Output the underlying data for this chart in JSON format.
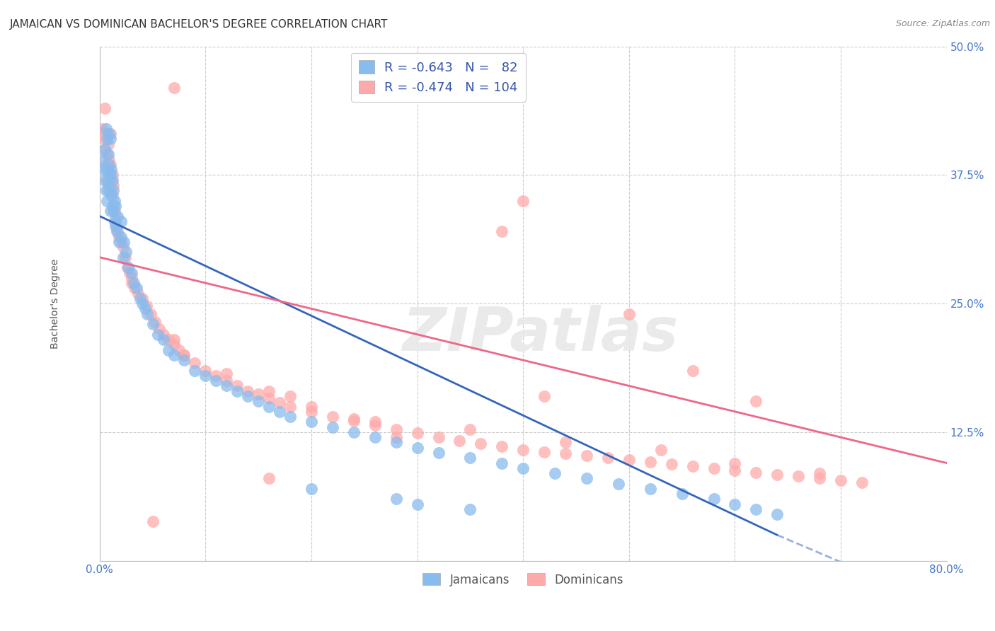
{
  "title": "JAMAICAN VS DOMINICAN BACHELOR'S DEGREE CORRELATION CHART",
  "source": "Source: ZipAtlas.com",
  "ylabel": "Bachelor's Degree",
  "xlim": [
    0.0,
    0.8
  ],
  "ylim": [
    0.0,
    0.5
  ],
  "xticks": [
    0.0,
    0.1,
    0.2,
    0.3,
    0.4,
    0.5,
    0.6,
    0.7,
    0.8
  ],
  "xticklabels_show": {
    "0.0": "0.0%",
    "0.80": "80.0%"
  },
  "yticks": [
    0.0,
    0.125,
    0.25,
    0.375,
    0.5
  ],
  "yticklabels": [
    "",
    "12.5%",
    "25.0%",
    "37.5%",
    "50.0%"
  ],
  "blue_color": "#88BBEE",
  "pink_color": "#FFAAAA",
  "blue_line_color": "#3366BB",
  "pink_line_color": "#EE6688",
  "legend_label_blue": "R = -0.643   N =   82",
  "legend_label_pink": "R = -0.474   N = 104",
  "bottom_legend_blue": "Jamaicans",
  "bottom_legend_pink": "Dominicans",
  "title_fontsize": 11,
  "axis_label_fontsize": 10,
  "tick_fontsize": 11,
  "legend_fontsize": 13,
  "watermark_text": "ZIPatlas",
  "grid_color": "#CCCCCC",
  "background_color": "#FFFFFF",
  "blue_line_x0": 0.0,
  "blue_line_y0": 0.335,
  "blue_line_x1": 0.64,
  "blue_line_y1": 0.025,
  "blue_line_dash_x0": 0.64,
  "blue_line_dash_y0": 0.025,
  "blue_line_dash_x1": 0.72,
  "blue_line_dash_y1": -0.01,
  "pink_line_x0": 0.0,
  "pink_line_y0": 0.295,
  "pink_line_x1": 0.8,
  "pink_line_y1": 0.095,
  "blue_points_x": [
    0.003,
    0.004,
    0.005,
    0.005,
    0.006,
    0.006,
    0.007,
    0.007,
    0.007,
    0.008,
    0.008,
    0.008,
    0.009,
    0.009,
    0.01,
    0.01,
    0.01,
    0.011,
    0.011,
    0.012,
    0.012,
    0.013,
    0.013,
    0.014,
    0.014,
    0.015,
    0.015,
    0.016,
    0.017,
    0.018,
    0.02,
    0.02,
    0.022,
    0.023,
    0.025,
    0.027,
    0.03,
    0.032,
    0.035,
    0.038,
    0.04,
    0.043,
    0.045,
    0.05,
    0.055,
    0.06,
    0.065,
    0.07,
    0.08,
    0.09,
    0.1,
    0.11,
    0.12,
    0.13,
    0.14,
    0.15,
    0.16,
    0.17,
    0.18,
    0.2,
    0.22,
    0.24,
    0.26,
    0.28,
    0.3,
    0.32,
    0.35,
    0.38,
    0.4,
    0.43,
    0.46,
    0.49,
    0.52,
    0.55,
    0.58,
    0.6,
    0.62,
    0.64,
    0.2,
    0.28,
    0.3,
    0.35
  ],
  "blue_points_y": [
    0.39,
    0.38,
    0.37,
    0.4,
    0.36,
    0.42,
    0.35,
    0.38,
    0.41,
    0.37,
    0.395,
    0.36,
    0.385,
    0.415,
    0.375,
    0.34,
    0.41,
    0.355,
    0.38,
    0.345,
    0.37,
    0.34,
    0.36,
    0.33,
    0.35,
    0.325,
    0.345,
    0.32,
    0.335,
    0.31,
    0.315,
    0.33,
    0.295,
    0.31,
    0.3,
    0.285,
    0.28,
    0.27,
    0.265,
    0.255,
    0.25,
    0.245,
    0.24,
    0.23,
    0.22,
    0.215,
    0.205,
    0.2,
    0.195,
    0.185,
    0.18,
    0.175,
    0.17,
    0.165,
    0.16,
    0.155,
    0.15,
    0.145,
    0.14,
    0.135,
    0.13,
    0.125,
    0.12,
    0.115,
    0.11,
    0.105,
    0.1,
    0.095,
    0.09,
    0.085,
    0.08,
    0.075,
    0.07,
    0.065,
    0.06,
    0.055,
    0.05,
    0.045,
    0.07,
    0.06,
    0.055,
    0.05
  ],
  "pink_points_x": [
    0.003,
    0.004,
    0.005,
    0.005,
    0.006,
    0.006,
    0.007,
    0.007,
    0.008,
    0.008,
    0.009,
    0.009,
    0.01,
    0.01,
    0.01,
    0.011,
    0.012,
    0.012,
    0.013,
    0.013,
    0.014,
    0.015,
    0.016,
    0.017,
    0.018,
    0.02,
    0.022,
    0.024,
    0.026,
    0.028,
    0.03,
    0.033,
    0.036,
    0.04,
    0.044,
    0.048,
    0.052,
    0.056,
    0.06,
    0.065,
    0.07,
    0.075,
    0.08,
    0.09,
    0.1,
    0.11,
    0.12,
    0.13,
    0.14,
    0.15,
    0.16,
    0.17,
    0.18,
    0.2,
    0.22,
    0.24,
    0.26,
    0.28,
    0.3,
    0.32,
    0.34,
    0.36,
    0.38,
    0.4,
    0.42,
    0.44,
    0.46,
    0.48,
    0.5,
    0.52,
    0.54,
    0.56,
    0.58,
    0.6,
    0.62,
    0.64,
    0.66,
    0.68,
    0.7,
    0.72,
    0.03,
    0.08,
    0.12,
    0.16,
    0.2,
    0.24,
    0.07,
    0.18,
    0.26,
    0.35,
    0.44,
    0.53,
    0.6,
    0.68,
    0.4,
    0.5,
    0.56,
    0.62,
    0.07,
    0.38,
    0.05,
    0.16,
    0.28,
    0.42
  ],
  "pink_points_y": [
    0.42,
    0.41,
    0.4,
    0.44,
    0.385,
    0.415,
    0.37,
    0.395,
    0.38,
    0.405,
    0.365,
    0.39,
    0.36,
    0.385,
    0.415,
    0.37,
    0.355,
    0.375,
    0.345,
    0.365,
    0.34,
    0.335,
    0.325,
    0.32,
    0.315,
    0.31,
    0.305,
    0.295,
    0.285,
    0.28,
    0.275,
    0.265,
    0.26,
    0.255,
    0.248,
    0.24,
    0.232,
    0.225,
    0.22,
    0.215,
    0.21,
    0.205,
    0.2,
    0.192,
    0.185,
    0.18,
    0.175,
    0.17,
    0.165,
    0.162,
    0.158,
    0.154,
    0.15,
    0.145,
    0.14,
    0.136,
    0.132,
    0.128,
    0.124,
    0.12,
    0.117,
    0.114,
    0.111,
    0.108,
    0.106,
    0.104,
    0.102,
    0.1,
    0.098,
    0.096,
    0.094,
    0.092,
    0.09,
    0.088,
    0.086,
    0.084,
    0.082,
    0.08,
    0.078,
    0.076,
    0.27,
    0.2,
    0.182,
    0.165,
    0.15,
    0.138,
    0.215,
    0.16,
    0.135,
    0.128,
    0.115,
    0.108,
    0.095,
    0.085,
    0.35,
    0.24,
    0.185,
    0.155,
    0.46,
    0.32,
    0.038,
    0.08,
    0.12,
    0.16
  ]
}
